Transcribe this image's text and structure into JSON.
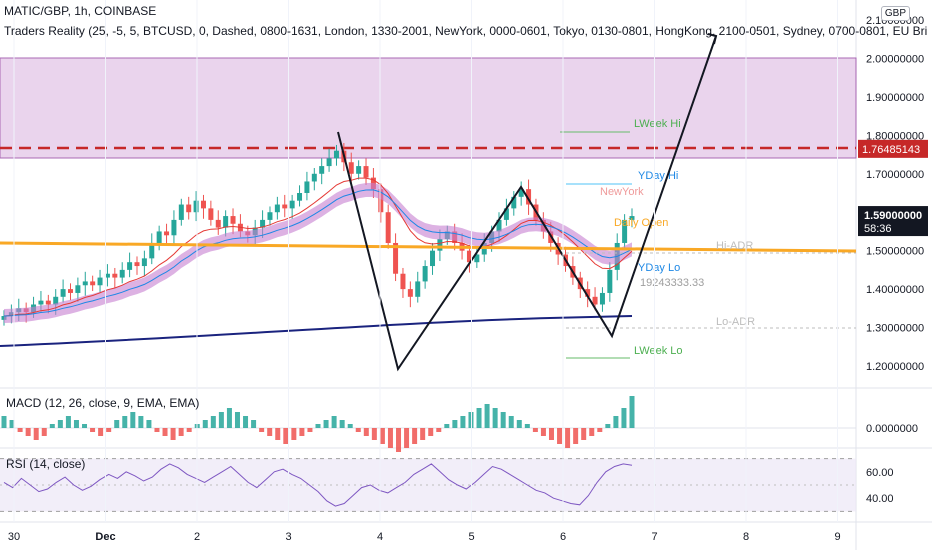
{
  "header": {
    "title": "MATIC/GBP, 1h, COINBASE",
    "indicator": "Traders Reality (25, -5, 5, BTCUSD, 0, Dashed, 0800-1631, London, 1330-2001, NewYork, 0000-0601, Tokyo, 0130-0801, HongKong, 2100-0501, Sydney, 0700-0801, EU Bri"
  },
  "currency": "GBP",
  "macd_title": "MACD (12, 26, close, 9, EMA, EMA)",
  "rsi_title": "RSI (14, close)",
  "chart_data": {
    "type": "candlestick",
    "symbol": "MATIC/GBP",
    "interval": "1h",
    "exchange": "COINBASE",
    "price_axis": {
      "ticks": [
        "2.10000000",
        "2.00000000",
        "1.90000000",
        "1.80000000",
        "1.70000000",
        "1.60000000",
        "1.50000000",
        "1.40000000",
        "1.30000000",
        "1.20000000"
      ],
      "ylim": [
        1.12,
        2.14
      ],
      "last_price": "1.59000000",
      "countdown": "58:36",
      "marked_level": "1.76485143"
    },
    "x_axis": {
      "ticks": [
        "30",
        "Dec",
        "2",
        "3",
        "4",
        "5",
        "6",
        "7",
        "8",
        "9"
      ]
    },
    "close": [
      1.33,
      1.34,
      1.35,
      1.34,
      1.36,
      1.37,
      1.36,
      1.38,
      1.4,
      1.39,
      1.41,
      1.42,
      1.41,
      1.43,
      1.44,
      1.43,
      1.45,
      1.47,
      1.46,
      1.48,
      1.52,
      1.55,
      1.54,
      1.58,
      1.62,
      1.6,
      1.63,
      1.61,
      1.58,
      1.56,
      1.59,
      1.57,
      1.55,
      1.54,
      1.56,
      1.58,
      1.6,
      1.62,
      1.61,
      1.63,
      1.65,
      1.68,
      1.7,
      1.72,
      1.74,
      1.76,
      1.73,
      1.7,
      1.72,
      1.69,
      1.66,
      1.6,
      1.52,
      1.44,
      1.4,
      1.38,
      1.42,
      1.46,
      1.5,
      1.53,
      1.55,
      1.52,
      1.5,
      1.47,
      1.49,
      1.52,
      1.55,
      1.58,
      1.61,
      1.64,
      1.66,
      1.62,
      1.58,
      1.55,
      1.52,
      1.49,
      1.46,
      1.43,
      1.4,
      1.38,
      1.36,
      1.39,
      1.45,
      1.52,
      1.58,
      1.59
    ],
    "overlay_labels": [
      "LWeek Hi",
      "YDay Hi",
      "NewYork",
      "Daily Open",
      "Hi-ADR",
      "YDay Lo",
      "19243333.33",
      "Lo-ADR",
      "LWeek Lo"
    ],
    "annotation_path": [
      [
        "Dec 3 20:00",
        1.8
      ],
      [
        "Dec 4 04:00",
        1.19
      ],
      [
        "Dec 5 14:00",
        1.66
      ],
      [
        "Dec 6 12:00",
        1.27
      ],
      [
        "Dec 7 14:00",
        2.05
      ]
    ],
    "macd": {
      "ticks": [
        "0.0000000"
      ],
      "histogram": [
        3,
        2,
        -1,
        -2,
        -3,
        -2,
        1,
        2,
        3,
        2,
        1,
        -1,
        -2,
        -1,
        2,
        3,
        4,
        3,
        2,
        -1,
        -2,
        -3,
        -2,
        -1,
        1,
        2,
        3,
        4,
        5,
        4,
        3,
        2,
        -1,
        -2,
        -3,
        -4,
        -3,
        -2,
        -1,
        1,
        2,
        3,
        2,
        1,
        -1,
        -2,
        -3,
        -4,
        -5,
        -6,
        -5,
        -4,
        -3,
        -2,
        -1,
        1,
        2,
        3,
        4,
        5,
        6,
        5,
        4,
        3,
        2,
        1,
        -1,
        -2,
        -3,
        -4,
        -5,
        -4,
        -3,
        -2,
        -1,
        1,
        3,
        5,
        8
      ]
    },
    "rsi": {
      "ticks": [
        "60.00",
        "40.00"
      ],
      "values": [
        52,
        48,
        55,
        50,
        45,
        47,
        52,
        56,
        50,
        46,
        49,
        54,
        58,
        55,
        60,
        57,
        53,
        56,
        62,
        66,
        63,
        58,
        55,
        52,
        56,
        60,
        64,
        58,
        52,
        48,
        54,
        60,
        62,
        58,
        55,
        50,
        45,
        38,
        34,
        36,
        42,
        48,
        50,
        46,
        44,
        48,
        52,
        58,
        62,
        66,
        60,
        54,
        50,
        47,
        52,
        58,
        64,
        62,
        58,
        54,
        50,
        46,
        44,
        40,
        38,
        36,
        35,
        42,
        52,
        60,
        64,
        66,
        65
      ]
    }
  }
}
